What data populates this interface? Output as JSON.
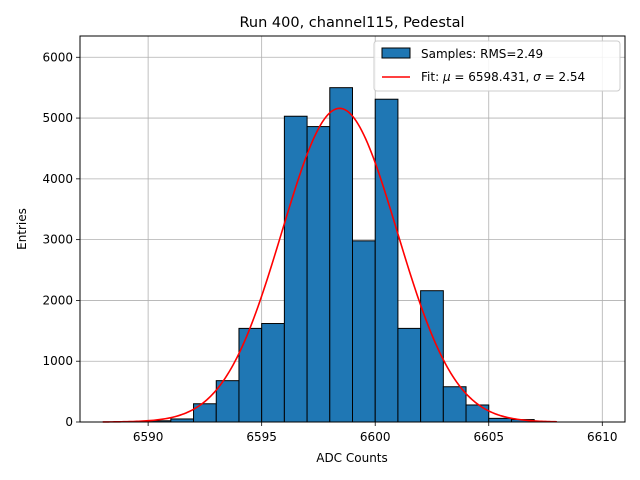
{
  "chart_data": {
    "type": "bar",
    "title": "Run 400, channel115, Pedestal",
    "xlabel": "ADC Counts",
    "ylabel": "Entries",
    "xlim": [
      6587.0,
      6611.0
    ],
    "ylim": [
      0,
      6350
    ],
    "xticks": [
      6590,
      6595,
      6600,
      6605,
      6610
    ],
    "yticks": [
      0,
      1000,
      2000,
      3000,
      4000,
      5000,
      6000
    ],
    "grid": true,
    "legend_position": "top-right",
    "histogram": {
      "name": "Samples: RMS=2.49",
      "color": "#1f77b4",
      "bin_width": 1,
      "bin_starts": [
        6590,
        6591,
        6592,
        6593,
        6594,
        6595,
        6596,
        6597,
        6598,
        6599,
        6600,
        6601,
        6602,
        6603,
        6604,
        6605,
        6606
      ],
      "values": [
        20,
        50,
        300,
        680,
        1540,
        1620,
        5030,
        4860,
        5500,
        2980,
        5310,
        1540,
        2160,
        580,
        280,
        60,
        40
      ]
    },
    "fit": {
      "name_prefix": "Fit: ",
      "mu_symbol": "μ",
      "mu_text": " = 6598.431, ",
      "sigma_symbol": "σ",
      "sigma_text": " = 2.54",
      "color": "#ff0000",
      "mu": 6598.431,
      "sigma": 2.54,
      "amplitude": 5160,
      "x_range": [
        6588.0,
        6608.0
      ]
    }
  }
}
